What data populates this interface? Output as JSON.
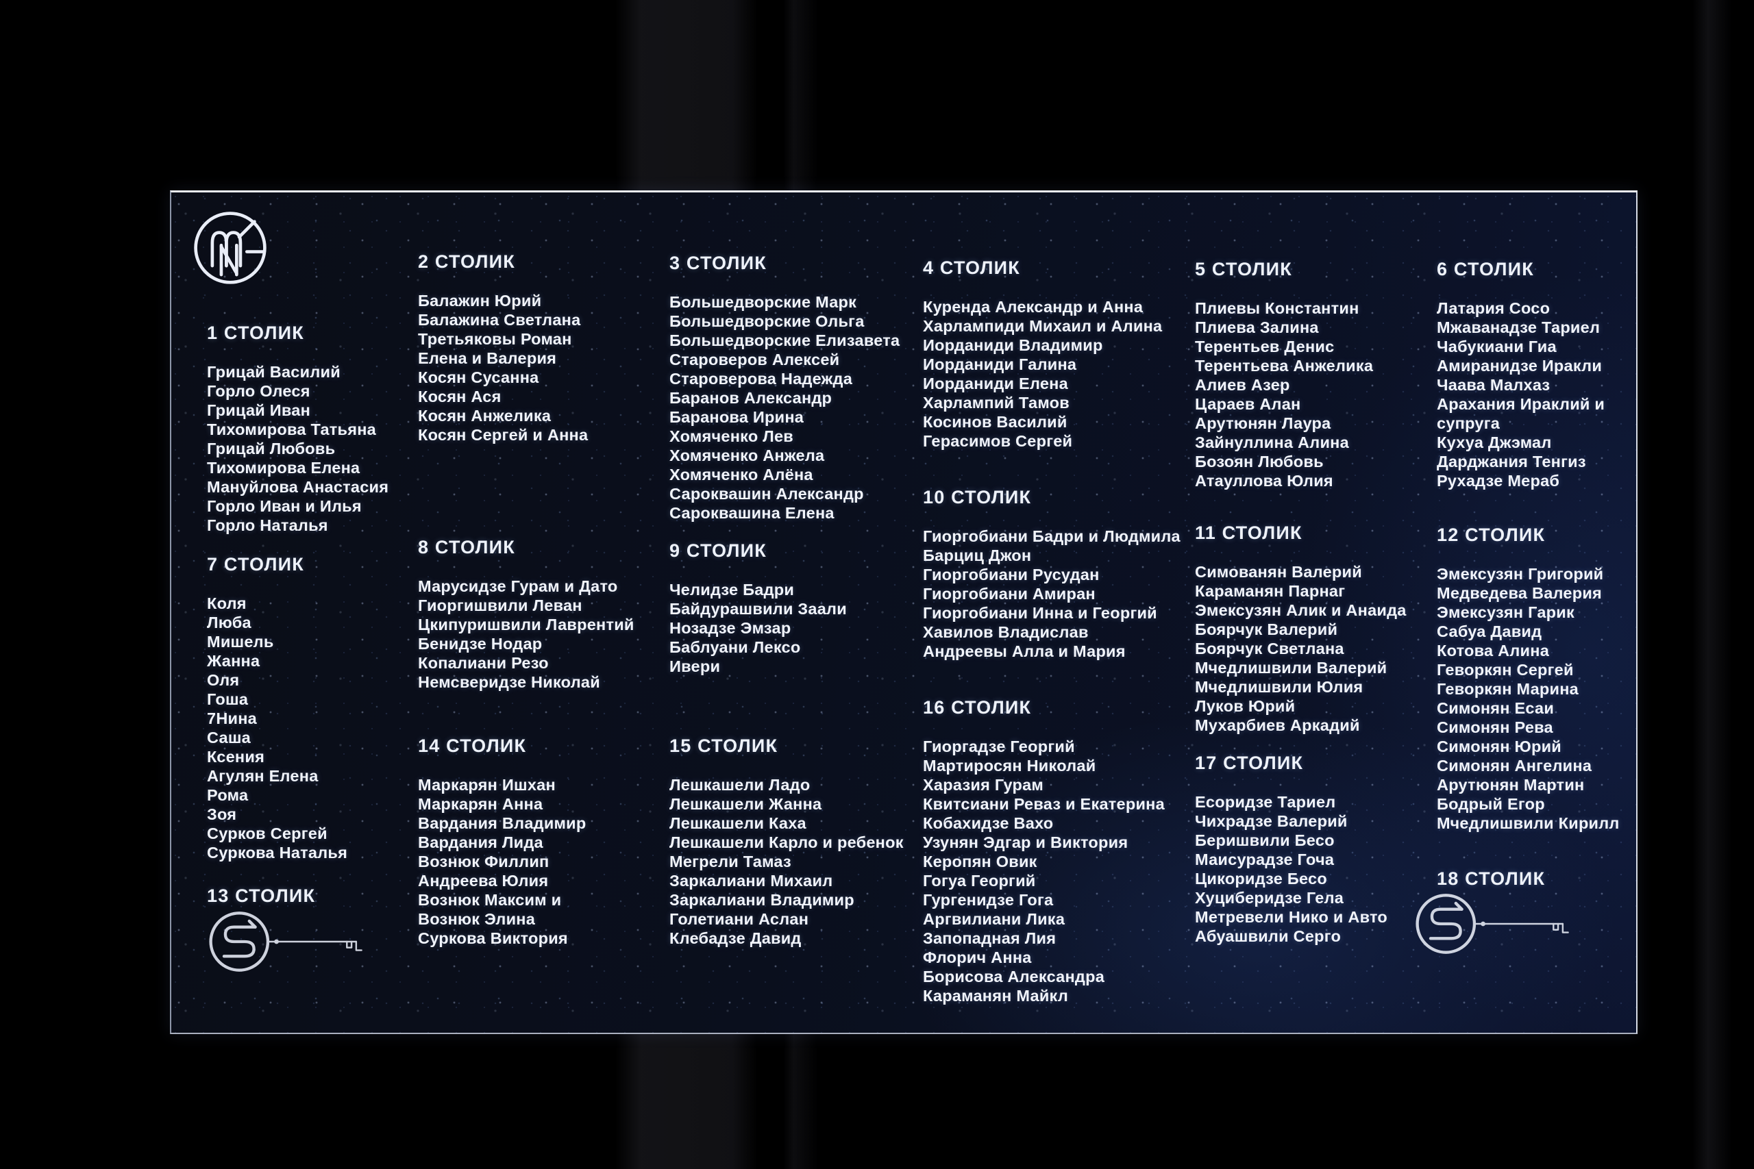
{
  "board_meta": {
    "kind": "wedding-seating-chart",
    "word_table": "СТОЛИК",
    "colors": {
      "background": "#000000",
      "board_bg": "#0a0e1a",
      "text": "#f1f4fb",
      "glow": "#2d50a0"
    },
    "icons": {
      "top_logo": "mng-monogram-icon",
      "bottom_left": "key-ornament-icon",
      "bottom_right": "key-ornament-icon"
    }
  },
  "tables": {
    "t1": {
      "title": "1 СТОЛИК",
      "names": [
        "Грицай Василий",
        "Горло Олеся",
        "Грицай Иван",
        "Тихомирова Татьяна",
        "Грицай Любовь",
        "Тихомирова Елена",
        "Мануйлова Анастасия",
        "Горло Иван и Илья",
        "Горло Наталья"
      ]
    },
    "t2": {
      "title": "2 СТОЛИК",
      "names": [
        "Балажин Юрий",
        "Балажина Светлана",
        "Третьяковы Роман",
        "Елена и Валерия",
        "Косян Сусанна",
        "Косян Ася",
        "Косян Анжелика",
        "Косян Сергей и Анна"
      ]
    },
    "t3": {
      "title": "3 СТОЛИК",
      "names": [
        "Большедворские Марк",
        "Большедворские Ольга",
        "Большедворские Елизавета",
        "Староверов Алексей",
        "Староверова Надежда",
        "Баранов Александр",
        "Баранова Ирина",
        "Хомяченко Лев",
        "Хомяченко Анжела",
        "Хомяченко Алёна",
        "Сароквашин Александр",
        "Сароквашина Елена"
      ]
    },
    "t4": {
      "title": "4 СТОЛИК",
      "names": [
        "Куренда Александр и Анна",
        "Харлампиди Михаил и Алина",
        "Иорданиди Владимир",
        "Иорданиди Галина",
        "Иорданиди Елена",
        "Харлампий Тамов",
        "Косинов Василий",
        "Герасимов Сергей"
      ]
    },
    "t5": {
      "title": "5 СТОЛИК",
      "names": [
        "Плиевы Константин",
        "Плиева Залина",
        "Терентьев Денис",
        "Терентьева Анжелика",
        "Алиев Азер",
        "Цараев Алан",
        "Арутюнян Лаура",
        "Зайнуллина Алина",
        "Бозоян Любовь",
        "Атауллова Юлия"
      ]
    },
    "t6": {
      "title": "6 СТОЛИК",
      "names": [
        "Латария Сосо",
        "Мжаванадзе Тариел",
        "Чабукиани Гиа",
        "Амиранидзе Иракли",
        "Чаава Малхаз",
        "Арахания Ираклий и",
        "супруга",
        "Кухуа Джэмал",
        "Дарджания Тенгиз",
        "Рухадзе Мераб"
      ]
    },
    "t7": {
      "title": "7 СТОЛИК",
      "names": [
        "Коля",
        "Люба",
        "Мишель",
        "Жанна",
        "Оля",
        "Гоша",
        "7Нина",
        "Саша",
        "Ксения",
        "Агулян Елена",
        "Рома",
        "Зоя",
        "Сурков Сергей",
        "Суркова Наталья"
      ]
    },
    "t8": {
      "title": "8 СТОЛИК",
      "names": [
        "Марусидзе Гурам и Дато",
        "Гиоргишвили Леван",
        "Цкипуришвили Лаврентий",
        "Бенидзе Нодар",
        "Копалиани Резо",
        "Немсверидзе Николай"
      ]
    },
    "t9": {
      "title": "9 СТОЛИК",
      "names": [
        "Челидзе Бадри",
        "Байдурашвили Заали",
        "Нозадзе Эмзар",
        "Баблуани Лексо",
        "Ивери"
      ]
    },
    "t10": {
      "title": "10 СТОЛИК",
      "names": [
        "Гиоргобиани Бадри и Людмила",
        "Барциц Джон",
        "Гиоргобиани Русудан",
        "Гиоргобиани Амиран",
        "Гиоргобиани Инна и Георгий",
        "Хавилов Владислав",
        "Андреевы Алла и Мария"
      ]
    },
    "t11": {
      "title": "11 СТОЛИК",
      "names": [
        "Симованян Валерий",
        "Караманян Парнаг",
        "Эмексузян Алик и Анаида",
        "Боярчук Валерий",
        "Боярчук Светлана",
        "Мчедлишвили Валерий",
        "Мчедлишвили Юлия",
        "Луков Юрий",
        "Мухарбиев Аркадий"
      ]
    },
    "t12": {
      "title": "12 СТОЛИК",
      "names": [
        "Эмексузян Григорий",
        "Медведева Валерия",
        "Эмексузян Гарик",
        "Сабуа Давид",
        "Котова Алина",
        "Геворкян Сергей",
        "Геворкян Марина",
        "Симонян Есаи",
        "Симонян Рева",
        "Симонян Юрий",
        "Симонян Ангелина",
        "Арутюнян Мартин",
        "Бодрый Егор",
        "Мчедлишвили Кирилл"
      ]
    },
    "t13": {
      "title": "13 СТОЛИК",
      "names": []
    },
    "t14": {
      "title": "14 СТОЛИК",
      "names": [
        "Маркарян Ишхан",
        "Маркарян Анна",
        "Вардания Владимир",
        "Вардания Лида",
        "Вознюк Филлип",
        "Андреева Юлия",
        "Вознюк Максим и",
        "Вознюк Элина",
        "Суркова Виктория"
      ]
    },
    "t15": {
      "title": "15 СТОЛИК",
      "names": [
        "Лешкашели Ладо",
        "Лешкашели Жанна",
        "Лешкашели Каха",
        "Лешкашели Карло и ребенок",
        "Мегрели Тамаз",
        "Заркалиани Михаил",
        "Заркалиани Владимир",
        "Голетиани Аслан",
        "Клебадзе Давид"
      ]
    },
    "t16": {
      "title": "16 СТОЛИК",
      "names": [
        "Гиоргадзе Георгий",
        "Мартиросян Николай",
        "Харазия Гурам",
        "Квитсиани Реваз и Екатерина",
        "Кобахидзе Вахо",
        "Узунян Эдгар и Виктория",
        "Керопян Овик",
        "Гогуа Георгий",
        "Гургенидзе Гога",
        "Аргвилиани Лика",
        "Запопадная Лия",
        "Флорич Анна",
        "Борисова Александра",
        "Караманян Майкл"
      ]
    },
    "t17": {
      "title": "17 СТОЛИК",
      "names": [
        "Есоридзе Тариел",
        "Чихрадзе Валерий",
        "Беришвили Бесо",
        "Маисурадзе Гоча",
        "Цикоридзе Бесо",
        "Хуциберидзе Гела",
        "Метревели Нико и Авто",
        "Абуашвили Серго"
      ]
    },
    "t18": {
      "title": "18 СТОЛИК",
      "names": []
    }
  }
}
